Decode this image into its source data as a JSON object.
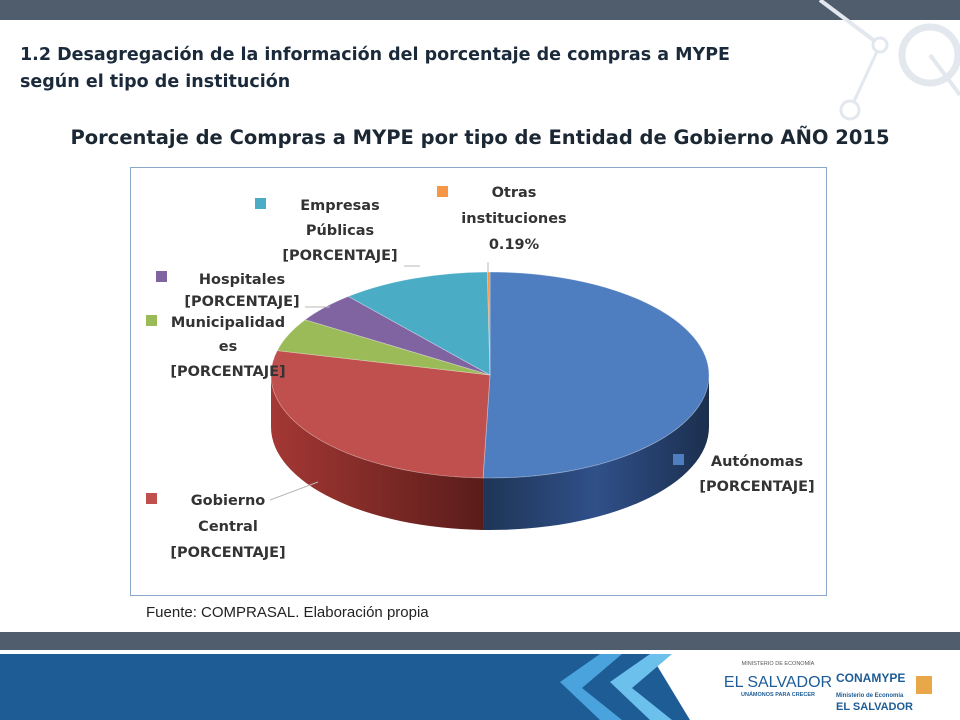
{
  "heading": {
    "number": "1.2",
    "line1": "Desagregación de la información del porcentaje de compras a MYPE",
    "line2": "según el tipo de institución"
  },
  "chart_data": {
    "type": "pie",
    "title": "Porcentaje  de Compras a MYPE por tipo de Entidad de Gobierno AÑO 2015",
    "series": [
      {
        "name": "Autónomas",
        "value": 50.5,
        "color": "#4f7ec0",
        "label_value": "[PORCENTAJE]"
      },
      {
        "name": "Gobierno Central",
        "value": 28.3,
        "color": "#c0504d",
        "label_value": "[PORCENTAJE]"
      },
      {
        "name": "Municipalidades",
        "value": 5.2,
        "color": "#9bbb59",
        "label_value": "[PORCENTAJE]"
      },
      {
        "name": "Hospitales",
        "value": 4.8,
        "color": "#8064a2",
        "label_value": "[PORCENTAJE]"
      },
      {
        "name": "Empresas Públicas",
        "value": 11.0,
        "color": "#4bacc6",
        "label_value": "[PORCENTAJE]"
      },
      {
        "name": "Otras instituciones",
        "value": 0.19,
        "color": "#f79646",
        "label_value": "0.19%"
      }
    ],
    "legend": "labels-beside-slices"
  },
  "labels": {
    "empresas": {
      "l1": "Empresas",
      "l2": "Públicas",
      "l3": "[PORCENTAJE]"
    },
    "otras": {
      "l1": "Otras",
      "l2": "instituciones",
      "l3": "0.19%"
    },
    "hospitales": {
      "l1": "Hospitales",
      "l2": "[PORCENTAJE]"
    },
    "municipalidades": {
      "l1": "Municipalidad",
      "l2": "es",
      "l3": "[PORCENTAJE]"
    },
    "gobierno": {
      "l1": "Gobierno",
      "l2": "Central",
      "l3": "[PORCENTAJE]"
    },
    "autonomas": {
      "l1": "Autónomas",
      "l2": "[PORCENTAJE]"
    }
  },
  "source": "Fuente: COMPRASAL.  Elaboración propia",
  "logos": {
    "elsalvador": {
      "top": "MINISTERIO DE ECONOMÍA",
      "main": "EL SALVADOR",
      "tag": "UNÁMONOS PARA CRECER"
    },
    "conamype": {
      "main": "CONAMYPE",
      "sub": "Ministerio de Economía",
      "country": "EL SALVADOR"
    }
  }
}
